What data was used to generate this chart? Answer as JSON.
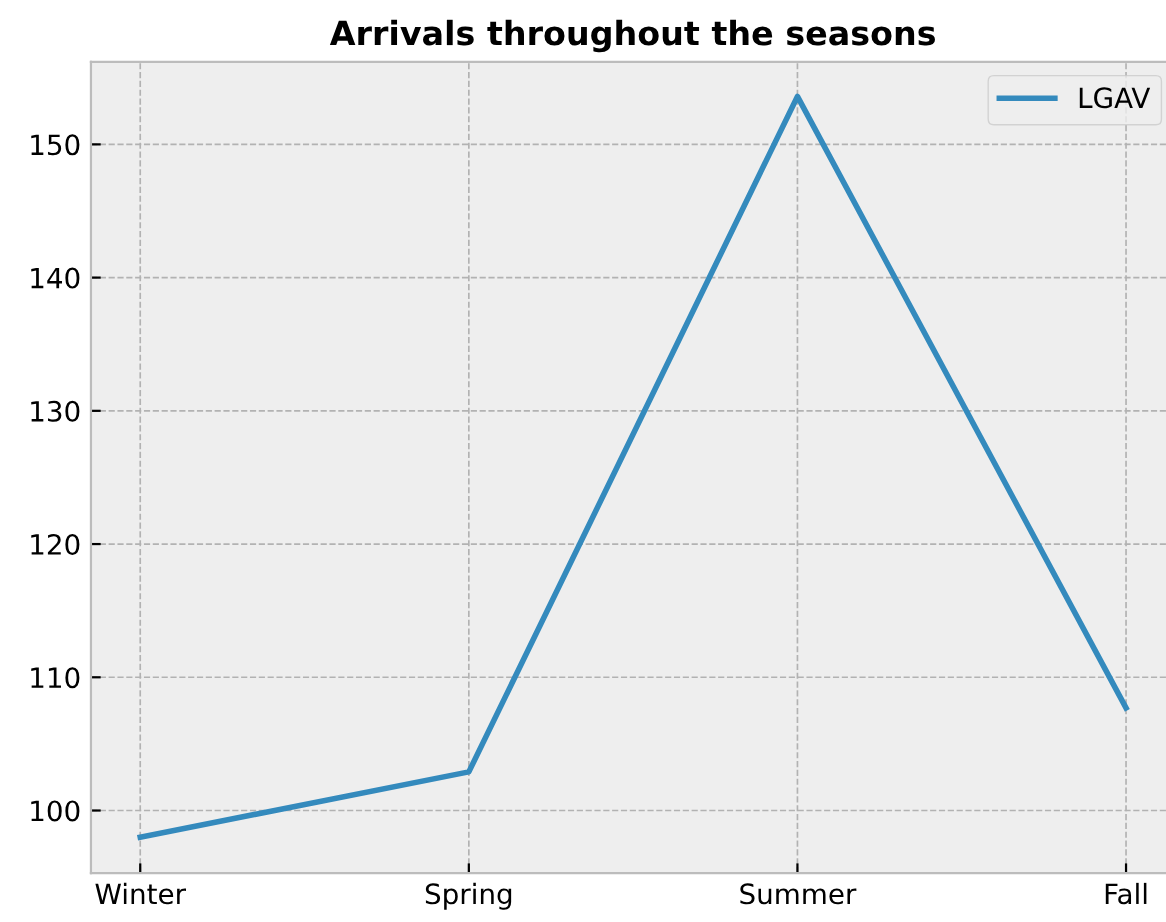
{
  "chart_data": {
    "type": "line",
    "title": "Arrivals throughout the seasons",
    "categories": [
      "Winter",
      "Spring",
      "Summer",
      "Fall"
    ],
    "series": [
      {
        "name": "LGAV",
        "color": "#348abd",
        "values": [
          98.0,
          102.9,
          153.6,
          107.7
        ]
      }
    ],
    "ylim": [
      95.3,
      156.2
    ],
    "yticks": [
      100,
      110,
      120,
      130,
      140,
      150
    ],
    "grid": true,
    "legend": "top right",
    "line_style": "solid",
    "marker": "none"
  }
}
